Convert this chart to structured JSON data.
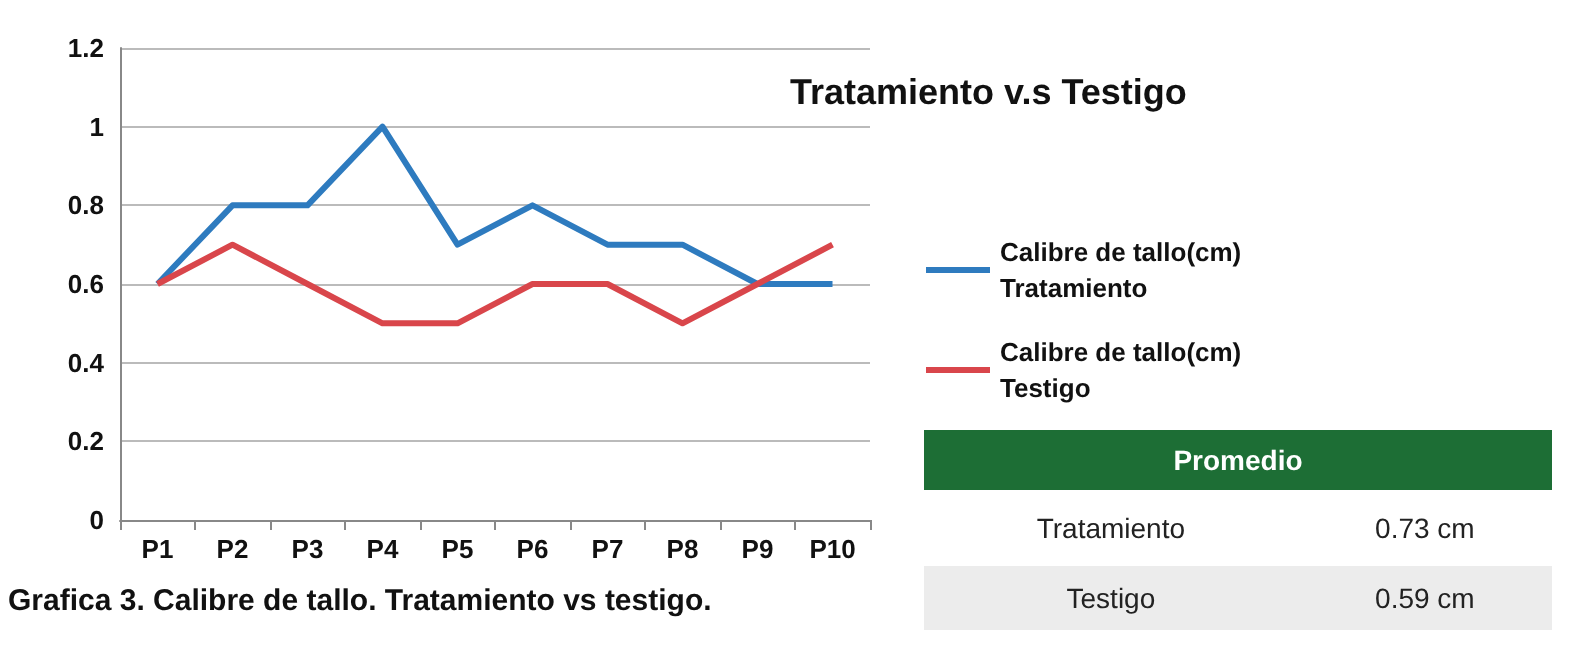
{
  "chart_data": {
    "type": "line",
    "title": "Tratamiento v.s Testigo",
    "categories": [
      "P1",
      "P2",
      "P3",
      "P4",
      "P5",
      "P6",
      "P7",
      "P8",
      "P9",
      "P10"
    ],
    "series": [
      {
        "name": "Calibre de tallo(cm) Tratamiento",
        "color": "#2e7bbf",
        "values": [
          0.6,
          0.8,
          0.8,
          1.0,
          0.7,
          0.8,
          0.7,
          0.7,
          0.6,
          0.6
        ]
      },
      {
        "name": "Calibre de tallo(cm) Testigo",
        "color": "#d9464b",
        "values": [
          0.6,
          0.7,
          0.6,
          0.5,
          0.5,
          0.6,
          0.6,
          0.5,
          0.6,
          0.7
        ]
      }
    ],
    "ylim": [
      0,
      1.2
    ],
    "yticks": [
      0,
      0.2,
      0.4,
      0.6,
      0.8,
      1,
      1.2
    ],
    "grid": "y",
    "legend": "right",
    "marker": "none",
    "line_style": "solid",
    "annotations": [
      "Grafica 3. Calibre de tallo. Tratamiento vs testigo.",
      "Promedio",
      "Tratamiento",
      "0.73 cm",
      "Testigo",
      "0.59 cm"
    ]
  }
}
